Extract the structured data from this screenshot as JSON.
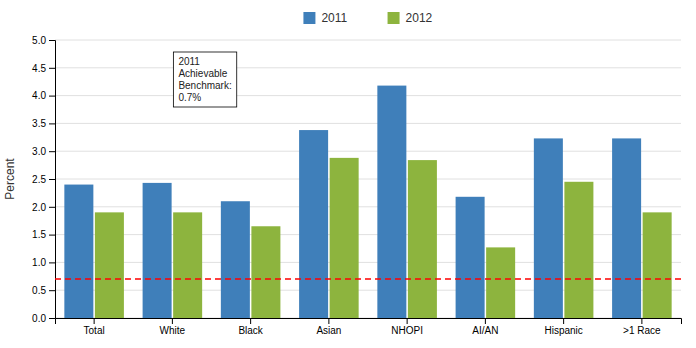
{
  "chart_data": {
    "type": "bar",
    "categories": [
      "Total",
      "White",
      "Black",
      "Asian",
      "NHOPI",
      "AI/AN",
      "Hispanic",
      ">1 Race"
    ],
    "series": [
      {
        "name": "2011",
        "color": "#3f7fba",
        "values": [
          2.4,
          2.43,
          2.1,
          3.38,
          4.18,
          2.18,
          3.23,
          3.23
        ]
      },
      {
        "name": "2012",
        "color": "#8db43e",
        "values": [
          1.9,
          1.9,
          1.65,
          2.88,
          2.84,
          1.27,
          2.45,
          1.9
        ]
      }
    ],
    "ylabel": "Percent",
    "ylim": [
      0,
      5.0
    ],
    "yticks": [
      {
        "value": 0.0,
        "label": "0.0"
      },
      0.5,
      {
        "value": 1.0,
        "label": "1.0"
      },
      1.5,
      {
        "value": 2.0,
        "label": "2.0"
      },
      2.5,
      {
        "value": 3.0,
        "label": "3.0"
      },
      3.5,
      {
        "value": 4.0,
        "label": "4.0"
      },
      4.5,
      {
        "value": 5.0,
        "label": "5.0"
      }
    ],
    "grid": true,
    "legend": "top",
    "benchmark": {
      "value": 0.7,
      "label": "2011\nAchievable\nBenchmark:\n0.7%",
      "color": "#ff0000",
      "line_style": "dashed"
    }
  }
}
